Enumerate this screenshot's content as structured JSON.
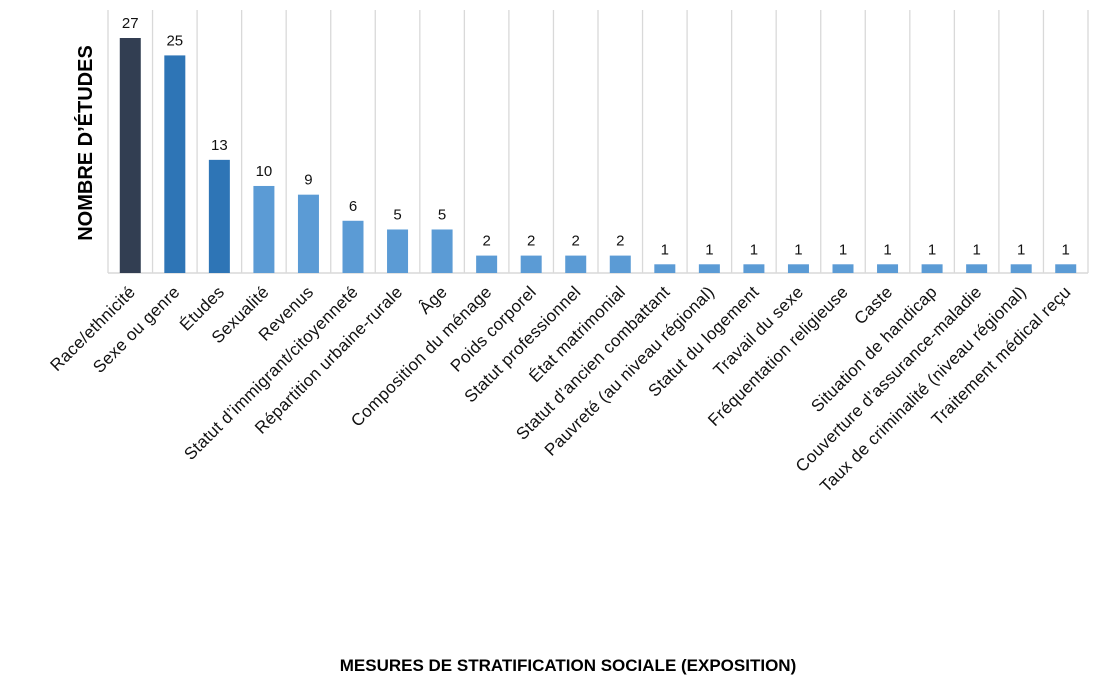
{
  "chart_data": {
    "type": "bar",
    "xlabel": "MESURES DE STRATIFICATION SOCIALE (EXPOSITION)",
    "ylabel": "NOMBRE D’ÉTUDES",
    "categories": [
      "Race/ethnicité",
      "Sexe ou genre",
      "Études",
      "Sexualité",
      "Revenus",
      "Statut d’immigrant/citoyenneté",
      "Répartition urbaine-rurale",
      "Âge",
      "Composition du ménage",
      "Poids corporel",
      "Statut professionnel",
      "État matrimonial",
      "Statut d’ancien combattant",
      "Pauvreté (au niveau régional)",
      "Statut du logement",
      "Travail du sexe",
      "Fréquentation religieuse",
      "Caste",
      "Situation de handicap",
      "Couverture d’assurance-maladie",
      "Taux de criminalité (niveau régional)",
      "Traitement médical reçu"
    ],
    "values": [
      27,
      25,
      13,
      10,
      9,
      6,
      5,
      5,
      2,
      2,
      2,
      2,
      1,
      1,
      1,
      1,
      1,
      1,
      1,
      1,
      1,
      1
    ],
    "bar_colors": [
      "#323e52",
      "#2e75b6",
      "#2e75b6",
      "#5b9bd5",
      "#5b9bd5",
      "#5b9bd5",
      "#5b9bd5",
      "#5b9bd5",
      "#5b9bd5",
      "#5b9bd5",
      "#5b9bd5",
      "#5b9bd5",
      "#5b9bd5",
      "#5b9bd5",
      "#5b9bd5",
      "#5b9bd5",
      "#5b9bd5",
      "#5b9bd5",
      "#5b9bd5",
      "#5b9bd5",
      "#5b9bd5",
      "#5b9bd5"
    ],
    "ylim": [
      0,
      30
    ],
    "grid": "vertical",
    "data_labels": true,
    "legend": "none"
  }
}
